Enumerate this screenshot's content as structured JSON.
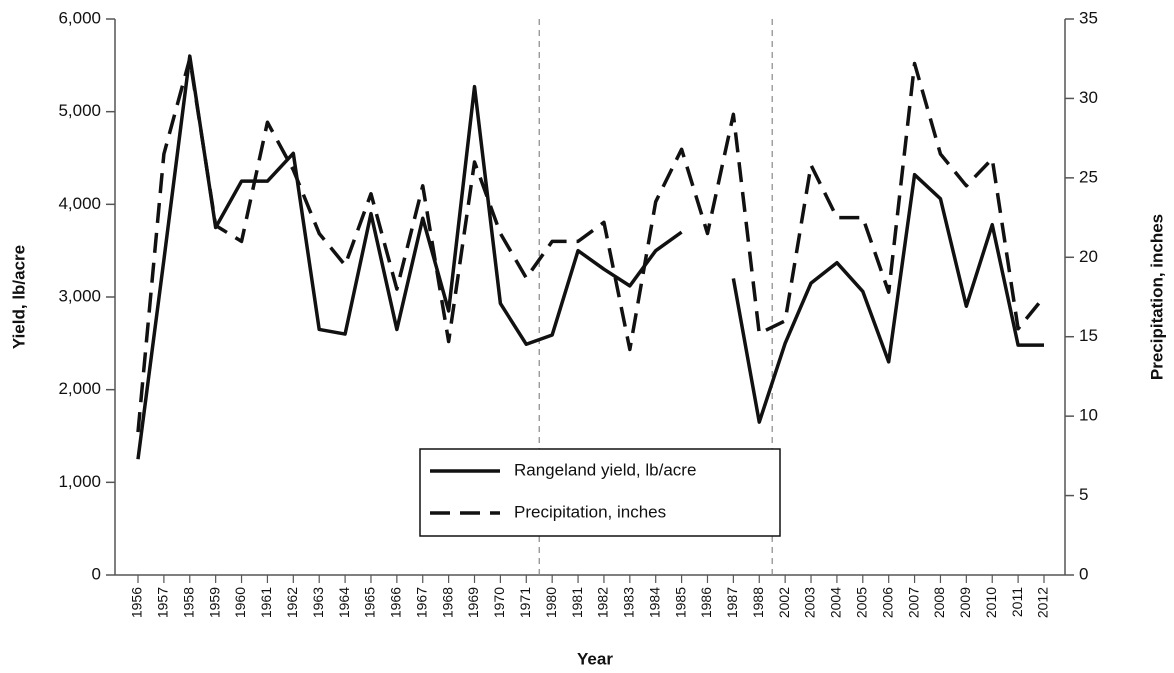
{
  "chart_data": {
    "type": "line",
    "x_label": "Year",
    "y_label": "Yield, lb/acre",
    "y2_label": "Precipitation, inches",
    "categories": [
      "1956",
      "1957",
      "1958",
      "1959",
      "1960",
      "1961",
      "1962",
      "1963",
      "1964",
      "1965",
      "1966",
      "1967",
      "1968",
      "1969",
      "1970",
      "1971",
      "1980",
      "1981",
      "1982",
      "1983",
      "1984",
      "1985",
      "1986",
      "1987",
      "1988",
      "2002",
      "2003",
      "2004",
      "2005",
      "2006",
      "2007",
      "2008",
      "2009",
      "2010",
      "2011",
      "2012"
    ],
    "series": [
      {
        "name": "Rangeland yield, lb/acre",
        "color": "#111111",
        "dash": "solid",
        "values": [
          1250,
          3400,
          5600,
          3750,
          4250,
          4250,
          4550,
          2650,
          2600,
          3900,
          2650,
          3850,
          2850,
          5270,
          2930,
          2490,
          2590,
          3500,
          3300,
          3120,
          3500,
          3700,
          null,
          3200,
          1650,
          2500,
          3150,
          3370,
          3060,
          2300,
          4320,
          4060,
          2900,
          3780,
          2480,
          2480
        ]
      },
      {
        "name": "Precipitation, inches",
        "color": "#111111",
        "dash": "dashed",
        "axis": "y2",
        "values": [
          9,
          26.5,
          32.5,
          22,
          21,
          28.5,
          25.5,
          21.5,
          19.5,
          24,
          18,
          24.5,
          14.7,
          26,
          21.5,
          18.7,
          21,
          21,
          22.2,
          14.2,
          23.5,
          26.8,
          21.5,
          29,
          15.2,
          16,
          25.8,
          22.5,
          22.5,
          17.8,
          32.2,
          26.5,
          24.5,
          26.2,
          15.5,
          17.5
        ]
      }
    ],
    "ylim": [
      0,
      6000
    ],
    "yticks": [
      0,
      {
        "value": 1000,
        "label": "1,000"
      },
      {
        "value": 2000,
        "label": "2,000"
      },
      {
        "value": 3000,
        "label": "3,000"
      },
      {
        "value": 4000,
        "label": "4,000"
      },
      {
        "value": 5000,
        "label": "5,000"
      },
      {
        "value": 6000,
        "label": "6,000"
      }
    ],
    "y2lim": [
      0,
      35
    ],
    "y2ticks": [
      0,
      5,
      10,
      15,
      20,
      25,
      30,
      35
    ],
    "grid": false
  }
}
